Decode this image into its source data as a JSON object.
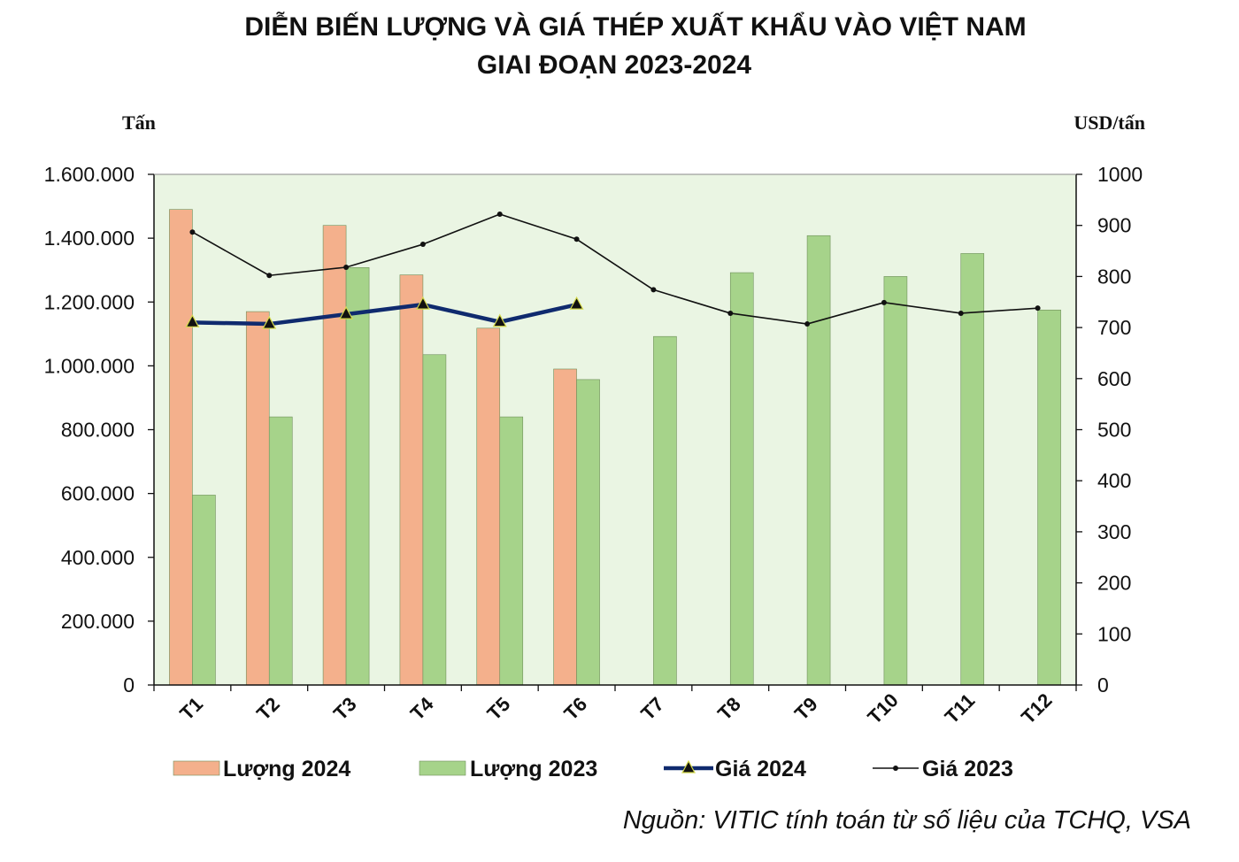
{
  "chart_data": {
    "type": "bar",
    "title_line1": "DIỄN BIẾN LƯỢNG VÀ GIÁ THÉP XUẤT KHẨU VÀO VIỆT NAM",
    "title_line2": "GIAI ĐOẠN 2023-2024",
    "ylabel_left": "Tấn",
    "ylabel_right": "USD/tấn",
    "categories": [
      "T1",
      "T2",
      "T3",
      "T4",
      "T5",
      "T6",
      "T7",
      "T8",
      "T9",
      "T10",
      "T11",
      "T12"
    ],
    "y_left": {
      "min": 0,
      "max": 1600000,
      "ticks": [
        0,
        200000,
        400000,
        600000,
        800000,
        1000000,
        1200000,
        1400000,
        1600000
      ],
      "tick_labels": [
        "0",
        "200.000",
        "400.000",
        "600.000",
        "800.000",
        "1.000.000",
        "1.200.000",
        "1.400.000",
        "1.600.000"
      ]
    },
    "y_right": {
      "min": 0,
      "max": 1000,
      "ticks": [
        0,
        100,
        200,
        300,
        400,
        500,
        600,
        700,
        800,
        900,
        1000
      ],
      "tick_labels": [
        "0",
        "100",
        "200",
        "300",
        "400",
        "500",
        "600",
        "700",
        "800",
        "900",
        "1000"
      ]
    },
    "series": [
      {
        "name": "Lượng 2024",
        "kind": "bar",
        "axis": "left",
        "color": "#f4b08c",
        "values": [
          1490000,
          1170000,
          1440000,
          1285000,
          1118000,
          990000,
          null,
          null,
          null,
          null,
          null,
          null
        ]
      },
      {
        "name": "Lượng 2023",
        "kind": "bar",
        "axis": "left",
        "color": "#a6d38a",
        "values": [
          595000,
          840000,
          1308000,
          1035000,
          840000,
          957000,
          1092000,
          1292000,
          1408000,
          1280000,
          1352000,
          1175000
        ]
      },
      {
        "name": "Giá 2024",
        "kind": "line",
        "axis": "right",
        "color": "#0f2a6e",
        "marker": "triangle",
        "values": [
          710,
          707,
          726,
          745,
          711,
          745,
          null,
          null,
          null,
          null,
          null,
          null
        ]
      },
      {
        "name": "Giá 2023",
        "kind": "line",
        "axis": "right",
        "color": "#111111",
        "marker": "dot",
        "values": [
          887,
          802,
          818,
          863,
          922,
          873,
          774,
          728,
          707,
          749,
          728,
          738
        ]
      }
    ],
    "plot_background": "#eaf5e3",
    "grid": false,
    "legend_position": "bottom"
  },
  "source": "Nguồn: VITIC tính toán từ số liệu của TCHQ, VSA"
}
